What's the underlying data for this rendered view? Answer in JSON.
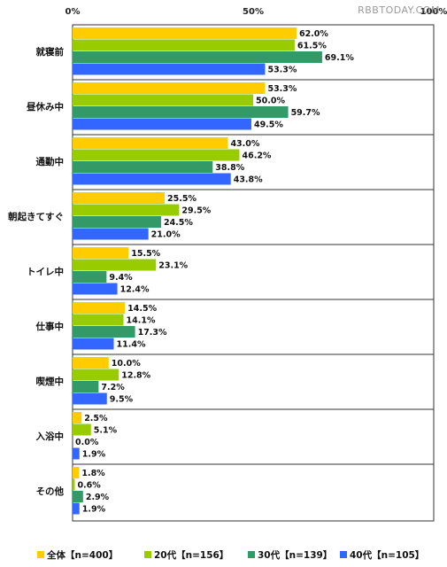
{
  "watermark": "RBBTODAY.COM",
  "chart_data": {
    "type": "bar",
    "orientation": "horizontal",
    "xlim": [
      0,
      100
    ],
    "x_ticks": [
      "0%",
      "50%",
      "100%"
    ],
    "categories": [
      "就寝前",
      "昼休み中",
      "通勤中",
      "朝起きてすぐ",
      "トイレ中",
      "仕事中",
      "喫煙中",
      "入浴中",
      "その他"
    ],
    "series": [
      {
        "name": "全体【n=400】",
        "color": "#FFCC00",
        "values": [
          62.0,
          53.3,
          43.0,
          25.5,
          15.5,
          14.5,
          10.0,
          2.5,
          1.8
        ]
      },
      {
        "name": "20代【n=156】",
        "color": "#99CC00",
        "values": [
          61.5,
          50.0,
          46.2,
          29.5,
          23.1,
          14.1,
          12.8,
          5.1,
          0.6
        ]
      },
      {
        "name": "30代【n=139】",
        "color": "#339966",
        "values": [
          69.1,
          59.7,
          38.8,
          24.5,
          9.4,
          17.3,
          7.2,
          0.0,
          2.9
        ]
      },
      {
        "name": "40代【n=105】",
        "color": "#3366FF",
        "values": [
          53.3,
          49.5,
          43.8,
          21.0,
          12.4,
          11.4,
          9.5,
          1.9,
          1.9
        ]
      }
    ],
    "value_labels": [
      [
        "62.0%",
        "53.3%",
        "43.0%",
        "25.5%",
        "15.5%",
        "14.5%",
        "10.0%",
        "2.5%",
        "1.8%"
      ],
      [
        "61.5%",
        "50.0%",
        "46.2%",
        "29.5%",
        "23.1%",
        "14.1%",
        "12.8%",
        "5.1%",
        "0.6%"
      ],
      [
        "69.1%",
        "59.7%",
        "38.8%",
        "24.5%",
        "9.4%",
        "17.3%",
        "7.2%",
        "0.0%",
        "2.9%"
      ],
      [
        "53.3%",
        "49.5%",
        "43.8%",
        "21.0%",
        "12.4%",
        "11.4%",
        "9.5%",
        "1.9%",
        "1.9%"
      ]
    ],
    "legend_position": "bottom",
    "grid": false
  }
}
